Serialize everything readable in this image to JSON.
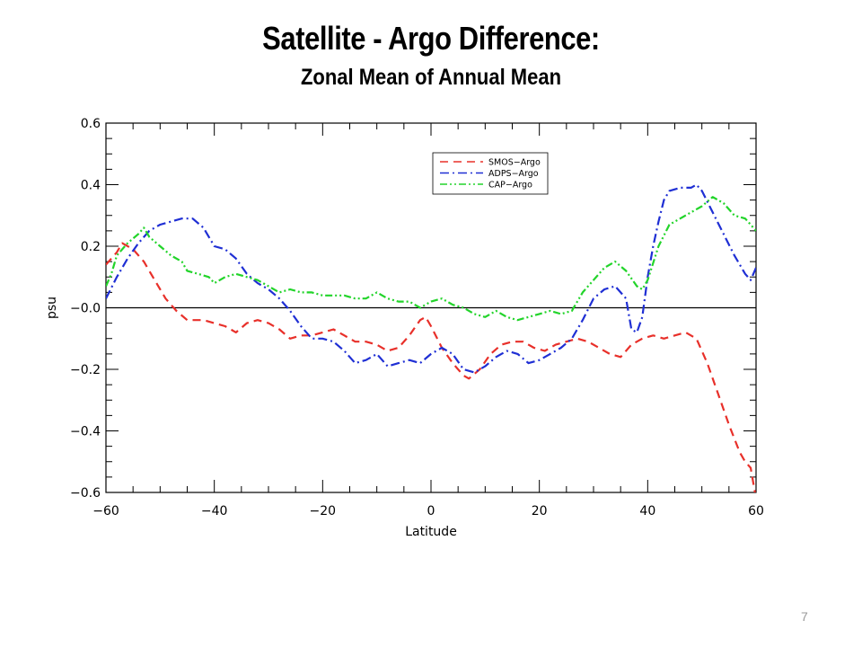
{
  "slide": {
    "title": "Satellite - Argo Difference:",
    "subtitle": "Zonal Mean of Annual Mean",
    "page_number": "7"
  },
  "chart_data": {
    "type": "line",
    "xlabel": "Latitude",
    "ylabel": "psu",
    "xlim": [
      -60,
      60
    ],
    "ylim": [
      -0.6,
      0.6
    ],
    "xticks": [
      -60,
      -40,
      -20,
      0,
      20,
      40,
      60
    ],
    "xtick_labels": [
      "−60",
      "−40",
      "−20",
      "0",
      "20",
      "40",
      "60"
    ],
    "yticks": [
      0.6,
      0.4,
      0.2,
      0.0,
      -0.2,
      -0.4,
      -0.6
    ],
    "ytick_labels": [
      "0.6",
      "0.4",
      "0.2",
      "−0.0",
      "−0.2",
      "−0.4",
      "−0.6"
    ],
    "zero_line": true,
    "grid": false,
    "legend_position": "top-center",
    "series": [
      {
        "name": "SMOS−Argo",
        "color": "#e8302a",
        "style": "dashed",
        "points": [
          [
            -60,
            0.14
          ],
          [
            -58,
            0.18
          ],
          [
            -57,
            0.21
          ],
          [
            -55,
            0.19
          ],
          [
            -53,
            0.15
          ],
          [
            -51,
            0.09
          ],
          [
            -49,
            0.03
          ],
          [
            -47,
            -0.01
          ],
          [
            -45,
            -0.04
          ],
          [
            -42,
            -0.04
          ],
          [
            -40,
            -0.05
          ],
          [
            -38,
            -0.06
          ],
          [
            -36,
            -0.08
          ],
          [
            -34,
            -0.05
          ],
          [
            -32,
            -0.04
          ],
          [
            -30,
            -0.05
          ],
          [
            -28,
            -0.07
          ],
          [
            -26,
            -0.1
          ],
          [
            -24,
            -0.09
          ],
          [
            -22,
            -0.09
          ],
          [
            -20,
            -0.08
          ],
          [
            -18,
            -0.07
          ],
          [
            -16,
            -0.09
          ],
          [
            -14,
            -0.11
          ],
          [
            -12,
            -0.11
          ],
          [
            -10,
            -0.12
          ],
          [
            -8,
            -0.14
          ],
          [
            -6,
            -0.13
          ],
          [
            -4,
            -0.09
          ],
          [
            -2,
            -0.04
          ],
          [
            -1,
            -0.03
          ],
          [
            0,
            -0.06
          ],
          [
            2,
            -0.13
          ],
          [
            4,
            -0.18
          ],
          [
            6,
            -0.22
          ],
          [
            7,
            -0.23
          ],
          [
            9,
            -0.2
          ],
          [
            11,
            -0.15
          ],
          [
            13,
            -0.12
          ],
          [
            15,
            -0.11
          ],
          [
            17,
            -0.11
          ],
          [
            19,
            -0.13
          ],
          [
            21,
            -0.14
          ],
          [
            23,
            -0.12
          ],
          [
            25,
            -0.11
          ],
          [
            27,
            -0.1
          ],
          [
            29,
            -0.11
          ],
          [
            31,
            -0.13
          ],
          [
            33,
            -0.15
          ],
          [
            35,
            -0.16
          ],
          [
            37,
            -0.12
          ],
          [
            39,
            -0.1
          ],
          [
            41,
            -0.09
          ],
          [
            43,
            -0.1
          ],
          [
            45,
            -0.09
          ],
          [
            47,
            -0.08
          ],
          [
            49,
            -0.1
          ],
          [
            51,
            -0.18
          ],
          [
            53,
            -0.28
          ],
          [
            55,
            -0.38
          ],
          [
            57,
            -0.47
          ],
          [
            58,
            -0.5
          ],
          [
            59,
            -0.52
          ],
          [
            60,
            -0.62
          ]
        ]
      },
      {
        "name": "ADPS−Argo",
        "color": "#1f2fd4",
        "style": "dash-dot",
        "points": [
          [
            -60,
            0.03
          ],
          [
            -58,
            0.1
          ],
          [
            -56,
            0.16
          ],
          [
            -54,
            0.21
          ],
          [
            -52,
            0.25
          ],
          [
            -50,
            0.27
          ],
          [
            -48,
            0.28
          ],
          [
            -46,
            0.29
          ],
          [
            -44,
            0.29
          ],
          [
            -42,
            0.26
          ],
          [
            -40,
            0.2
          ],
          [
            -38,
            0.19
          ],
          [
            -36,
            0.16
          ],
          [
            -34,
            0.11
          ],
          [
            -32,
            0.08
          ],
          [
            -30,
            0.06
          ],
          [
            -28,
            0.03
          ],
          [
            -26,
            -0.01
          ],
          [
            -24,
            -0.06
          ],
          [
            -22,
            -0.1
          ],
          [
            -20,
            -0.1
          ],
          [
            -18,
            -0.11
          ],
          [
            -16,
            -0.14
          ],
          [
            -14,
            -0.18
          ],
          [
            -12,
            -0.17
          ],
          [
            -10,
            -0.15
          ],
          [
            -8,
            -0.19
          ],
          [
            -6,
            -0.18
          ],
          [
            -4,
            -0.17
          ],
          [
            -2,
            -0.18
          ],
          [
            0,
            -0.15
          ],
          [
            2,
            -0.13
          ],
          [
            4,
            -0.15
          ],
          [
            6,
            -0.2
          ],
          [
            8,
            -0.21
          ],
          [
            10,
            -0.19
          ],
          [
            12,
            -0.16
          ],
          [
            14,
            -0.14
          ],
          [
            16,
            -0.15
          ],
          [
            18,
            -0.18
          ],
          [
            20,
            -0.17
          ],
          [
            22,
            -0.15
          ],
          [
            24,
            -0.13
          ],
          [
            26,
            -0.1
          ],
          [
            28,
            -0.04
          ],
          [
            30,
            0.03
          ],
          [
            32,
            0.06
          ],
          [
            34,
            0.07
          ],
          [
            36,
            0.03
          ],
          [
            37,
            -0.07
          ],
          [
            38,
            -0.08
          ],
          [
            39,
            -0.03
          ],
          [
            40,
            0.1
          ],
          [
            41,
            0.2
          ],
          [
            42,
            0.28
          ],
          [
            43,
            0.35
          ],
          [
            44,
            0.38
          ],
          [
            46,
            0.39
          ],
          [
            48,
            0.39
          ],
          [
            49,
            0.4
          ],
          [
            50,
            0.38
          ],
          [
            52,
            0.31
          ],
          [
            54,
            0.24
          ],
          [
            56,
            0.17
          ],
          [
            58,
            0.11
          ],
          [
            59,
            0.09
          ],
          [
            60,
            0.13
          ]
        ]
      },
      {
        "name": "CAP−Argo",
        "color": "#22d42a",
        "style": "dash-dot-dot",
        "points": [
          [
            -60,
            0.07
          ],
          [
            -59,
            0.11
          ],
          [
            -58,
            0.17
          ],
          [
            -56,
            0.21
          ],
          [
            -54,
            0.24
          ],
          [
            -53,
            0.26
          ],
          [
            -52,
            0.23
          ],
          [
            -50,
            0.2
          ],
          [
            -48,
            0.17
          ],
          [
            -46,
            0.15
          ],
          [
            -45,
            0.12
          ],
          [
            -43,
            0.11
          ],
          [
            -41,
            0.1
          ],
          [
            -40,
            0.08
          ],
          [
            -38,
            0.1
          ],
          [
            -36,
            0.11
          ],
          [
            -34,
            0.1
          ],
          [
            -32,
            0.09
          ],
          [
            -30,
            0.07
          ],
          [
            -28,
            0.05
          ],
          [
            -26,
            0.06
          ],
          [
            -24,
            0.05
          ],
          [
            -22,
            0.05
          ],
          [
            -20,
            0.04
          ],
          [
            -18,
            0.04
          ],
          [
            -16,
            0.04
          ],
          [
            -14,
            0.03
          ],
          [
            -12,
            0.03
          ],
          [
            -10,
            0.05
          ],
          [
            -8,
            0.03
          ],
          [
            -6,
            0.02
          ],
          [
            -4,
            0.02
          ],
          [
            -2,
            0.0
          ],
          [
            0,
            0.02
          ],
          [
            2,
            0.03
          ],
          [
            4,
            0.01
          ],
          [
            6,
            0.0
          ],
          [
            8,
            -0.02
          ],
          [
            10,
            -0.03
          ],
          [
            12,
            -0.01
          ],
          [
            14,
            -0.03
          ],
          [
            16,
            -0.04
          ],
          [
            18,
            -0.03
          ],
          [
            20,
            -0.02
          ],
          [
            22,
            -0.01
          ],
          [
            24,
            -0.02
          ],
          [
            26,
            -0.01
          ],
          [
            28,
            0.05
          ],
          [
            30,
            0.09
          ],
          [
            32,
            0.13
          ],
          [
            34,
            0.15
          ],
          [
            36,
            0.12
          ],
          [
            38,
            0.07
          ],
          [
            39,
            0.06
          ],
          [
            40,
            0.09
          ],
          [
            42,
            0.2
          ],
          [
            44,
            0.27
          ],
          [
            46,
            0.29
          ],
          [
            48,
            0.31
          ],
          [
            50,
            0.33
          ],
          [
            52,
            0.36
          ],
          [
            54,
            0.34
          ],
          [
            56,
            0.3
          ],
          [
            58,
            0.29
          ],
          [
            59,
            0.27
          ],
          [
            60,
            0.25
          ]
        ]
      }
    ]
  }
}
